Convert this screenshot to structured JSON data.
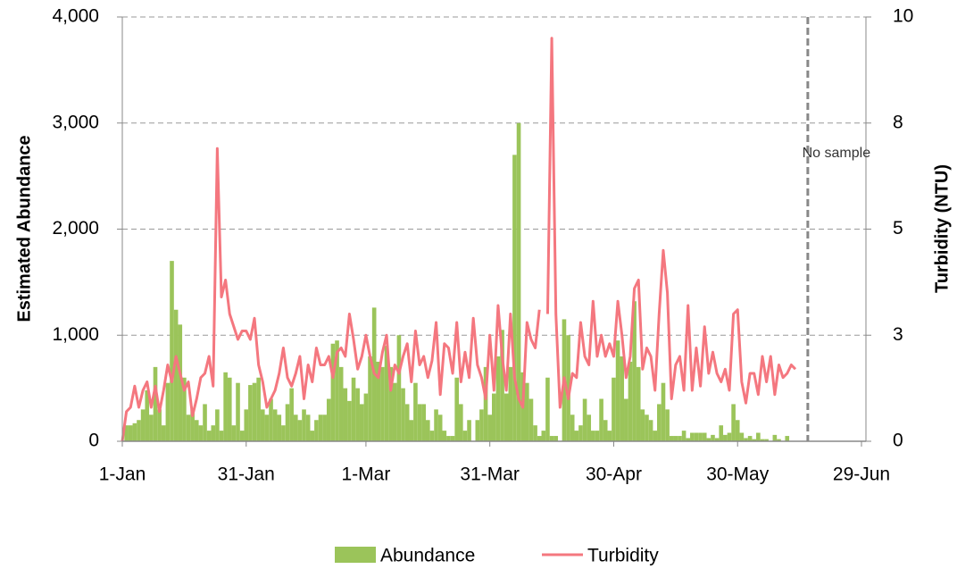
{
  "chart_data": {
    "type": "bar-line",
    "y_label": "Estimated Abundance",
    "y2_label": "Turbidity (NTU)",
    "annotation": {
      "text": "No sample",
      "x": 166
    },
    "xlim": [
      0,
      179
    ],
    "xticks": [
      {
        "value": 0,
        "label": "1-Jan"
      },
      {
        "value": 30,
        "label": "31-Jan"
      },
      {
        "value": 59,
        "label": "1-Mar"
      },
      {
        "value": 89,
        "label": "31-Mar"
      },
      {
        "value": 119,
        "label": "30-Apr"
      },
      {
        "value": 149,
        "label": "30-May"
      },
      {
        "value": 179,
        "label": "29-Jun"
      }
    ],
    "ylim": [
      0,
      4000
    ],
    "yticks": [
      0,
      {
        "value": 1000,
        "label": "1,000"
      },
      {
        "value": 2000,
        "label": "2,000"
      },
      {
        "value": 3000,
        "label": "3,000"
      },
      {
        "value": 4000,
        "label": "4,000"
      }
    ],
    "y2lim": [
      0,
      10
    ],
    "y2ticks": [
      0,
      {
        "value": 2.5,
        "label": "3"
      },
      5,
      {
        "value": 7.5,
        "label": "8"
      },
      10
    ],
    "grid": true,
    "x": [
      0,
      1,
      2,
      3,
      4,
      5,
      6,
      7,
      8,
      9,
      10,
      11,
      12,
      13,
      14,
      15,
      16,
      17,
      18,
      19,
      20,
      21,
      22,
      23,
      24,
      25,
      26,
      27,
      28,
      29,
      30,
      31,
      32,
      33,
      34,
      35,
      36,
      37,
      38,
      39,
      40,
      41,
      42,
      43,
      44,
      45,
      46,
      47,
      48,
      49,
      50,
      51,
      52,
      53,
      54,
      55,
      56,
      57,
      58,
      59,
      60,
      61,
      62,
      63,
      64,
      65,
      66,
      67,
      68,
      69,
      70,
      71,
      72,
      73,
      74,
      75,
      76,
      77,
      78,
      79,
      80,
      81,
      82,
      83,
      84,
      85,
      86,
      87,
      88,
      89,
      90,
      91,
      92,
      93,
      94,
      95,
      96,
      97,
      98,
      99,
      100,
      101,
      102,
      103,
      104,
      105,
      106,
      107,
      108,
      109,
      110,
      111,
      112,
      113,
      114,
      115,
      116,
      117,
      118,
      119,
      120,
      121,
      122,
      123,
      124,
      125,
      126,
      127,
      128,
      129,
      130,
      131,
      132,
      133,
      134,
      135,
      136,
      137,
      138,
      139,
      140,
      141,
      142,
      143,
      144,
      145,
      146,
      147,
      148,
      149,
      150,
      151,
      152,
      153,
      154,
      155,
      156,
      157,
      158,
      159,
      160,
      161,
      162,
      163
    ],
    "series": [
      {
        "name": "Abundance",
        "type": "bar",
        "color": "#9bc45a",
        "values": [
          0,
          150,
          150,
          170,
          200,
          300,
          480,
          250,
          700,
          300,
          150,
          550,
          1700,
          1240,
          1100,
          600,
          250,
          300,
          200,
          150,
          350,
          100,
          150,
          300,
          100,
          650,
          600,
          150,
          550,
          100,
          300,
          530,
          550,
          600,
          300,
          250,
          400,
          300,
          250,
          150,
          350,
          500,
          250,
          200,
          300,
          250,
          100,
          200,
          250,
          250,
          400,
          920,
          950,
          700,
          500,
          380,
          600,
          500,
          350,
          450,
          800,
          1260,
          750,
          700,
          900,
          700,
          550,
          1000,
          500,
          350,
          200,
          550,
          350,
          350,
          200,
          100,
          300,
          250,
          100,
          50,
          50,
          600,
          350,
          100,
          200,
          0,
          200,
          300,
          700,
          250,
          450,
          800,
          1050,
          450,
          700,
          2700,
          3000,
          650,
          550,
          400,
          150,
          50,
          100,
          600,
          50,
          50,
          0,
          1150,
          1000,
          250,
          100,
          150,
          400,
          250,
          100,
          100,
          400,
          200,
          100,
          600,
          950,
          800,
          400,
          750,
          1320,
          700,
          300,
          250,
          200,
          100,
          350,
          550,
          300,
          50,
          50,
          50,
          100,
          30,
          80,
          80,
          80,
          80,
          30,
          60,
          30,
          150,
          60,
          80,
          350,
          200,
          80,
          30,
          50,
          20,
          80,
          20,
          20,
          0,
          60,
          20,
          0,
          50,
          0,
          0
        ]
      },
      {
        "name": "Turbidity",
        "type": "line",
        "axis": "y2",
        "color": "#f4777f",
        "values": [
          0,
          0.7,
          0.8,
          1.3,
          0.8,
          1.2,
          1.4,
          0.8,
          1.3,
          0.7,
          1.2,
          1.8,
          1.4,
          2.0,
          1.6,
          1.2,
          1.4,
          0.6,
          1.0,
          1.5,
          1.6,
          2.0,
          1.3,
          6.9,
          3.4,
          3.8,
          3.0,
          2.7,
          2.4,
          2.6,
          2.6,
          2.4,
          2.9,
          1.8,
          1.4,
          0.8,
          1.0,
          1.2,
          1.6,
          2.2,
          1.5,
          1.3,
          1.6,
          2.0,
          1.0,
          1.8,
          1.4,
          2.2,
          1.8,
          1.8,
          2.0,
          1.5,
          2.1,
          2.2,
          2.0,
          3.0,
          2.4,
          1.7,
          2.0,
          2.5,
          2.0,
          1.6,
          1.5,
          2.1,
          2.5,
          1.2,
          1.8,
          1.6,
          2.0,
          2.3,
          1.4,
          2.6,
          1.8,
          2.0,
          1.5,
          1.9,
          2.8,
          1.1,
          2.3,
          2.2,
          1.6,
          2.8,
          1.4,
          2.1,
          1.5,
          2.9,
          1.8,
          1.5,
          1.0,
          2.5,
          1.2,
          3.2,
          2.0,
          1.2,
          3.0,
          1.5,
          1.0,
          0.8,
          2.8,
          2.4,
          2.2,
          3.1,
          null,
          3.0,
          9.5,
          3.0,
          0.8,
          1.5,
          1.0,
          1.6,
          1.5,
          2.8,
          2.0,
          1.8,
          3.3,
          2.0,
          2.5,
          2.0,
          2.3,
          2.0,
          3.3,
          2.5,
          1.5,
          2.0,
          3.6,
          3.8,
          1.7,
          2.2,
          2.0,
          1.2,
          3.0,
          4.5,
          3.5,
          1.0,
          1.8,
          2.0,
          1.2,
          3.2,
          1.2,
          2.2,
          1.3,
          2.7,
          1.6,
          2.1,
          1.6,
          1.4,
          1.7,
          1.2,
          3.0,
          3.1,
          1.4,
          0.9,
          1.6,
          1.6,
          1.1,
          2.0,
          1.4,
          2.0,
          1.1,
          1.8,
          1.5,
          1.6,
          1.8,
          1.7
        ]
      }
    ]
  }
}
